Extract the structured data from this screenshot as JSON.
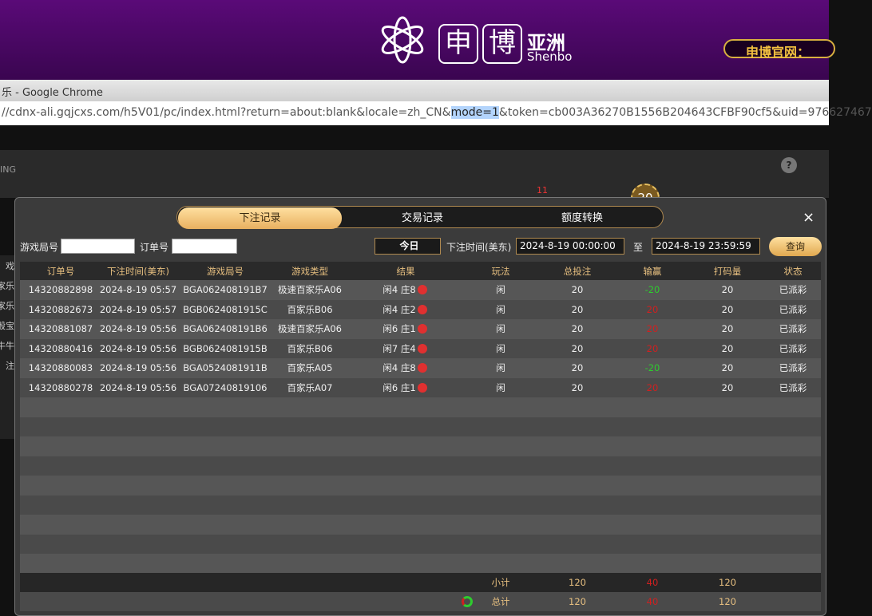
{
  "banner": {
    "logo_chars": [
      "申",
      "博"
    ],
    "logo_cn": "亚洲",
    "logo_en": "Shenbo",
    "site_label": "申博官网："
  },
  "browser": {
    "title": "乐 - Google Chrome",
    "url_before": "//cdnx-ali.gqjcxs.com/h5V01/pc/index.html?return=about:blank&locale=zh_CN&",
    "url_highlight": "mode=1",
    "url_after": "&token=cb003A36270B1556B204643CFBF90cf5&uid=976627467"
  },
  "background": {
    "brand_fragment": "ING",
    "side_items": [
      "戏",
      "家乐",
      "家乐",
      "骰宝",
      "牛牛",
      "注"
    ],
    "badge": "11",
    "chip": "20"
  },
  "modal": {
    "tabs": [
      "下注记录",
      "交易记录",
      "额度转换"
    ],
    "filters": {
      "round_label": "游戏局号",
      "order_label": "订单号",
      "period": "今日",
      "time_label": "下注时间(美东)",
      "start": "2024-8-19 00:00:00",
      "to": "至",
      "end": "2024-8-19 23:59:59",
      "query": "查询"
    },
    "table": {
      "columns": [
        "订单号",
        "下注时间(美东)",
        "游戏局号",
        "游戏类型",
        "结果",
        "玩法",
        "总投注",
        "输赢",
        "打码量",
        "状态"
      ],
      "rows": [
        [
          "14320882898",
          "2024-8-19 05:57",
          "BGA062408191B7",
          "极速百家乐A06",
          "闲4 庄8",
          "闲",
          "20",
          "-20",
          "20",
          "已派彩"
        ],
        [
          "14320882673",
          "2024-8-19 05:57",
          "BGB0624081915C",
          "百家乐B06",
          "闲4 庄2",
          "闲",
          "20",
          "20",
          "20",
          "已派彩"
        ],
        [
          "14320881087",
          "2024-8-19 05:56",
          "BGA062408191B6",
          "极速百家乐A06",
          "闲6 庄1",
          "闲",
          "20",
          "20",
          "20",
          "已派彩"
        ],
        [
          "14320880416",
          "2024-8-19 05:56",
          "BGB0624081915B",
          "百家乐B06",
          "闲7 庄4",
          "闲",
          "20",
          "20",
          "20",
          "已派彩"
        ],
        [
          "14320880083",
          "2024-8-19 05:56",
          "BGA0524081911B",
          "百家乐A05",
          "闲4 庄8",
          "闲",
          "20",
          "-20",
          "20",
          "已派彩"
        ],
        [
          "14320880278",
          "2024-8-19 05:56",
          "BGA07240819106",
          "百家乐A07",
          "闲6 庄1",
          "闲",
          "20",
          "20",
          "20",
          "已派彩"
        ]
      ],
      "subtotal": {
        "label": "小计",
        "values": [
          "120",
          "40",
          "120"
        ]
      },
      "total": {
        "label": "总计",
        "values": [
          "120",
          "40",
          "120"
        ]
      }
    }
  }
}
